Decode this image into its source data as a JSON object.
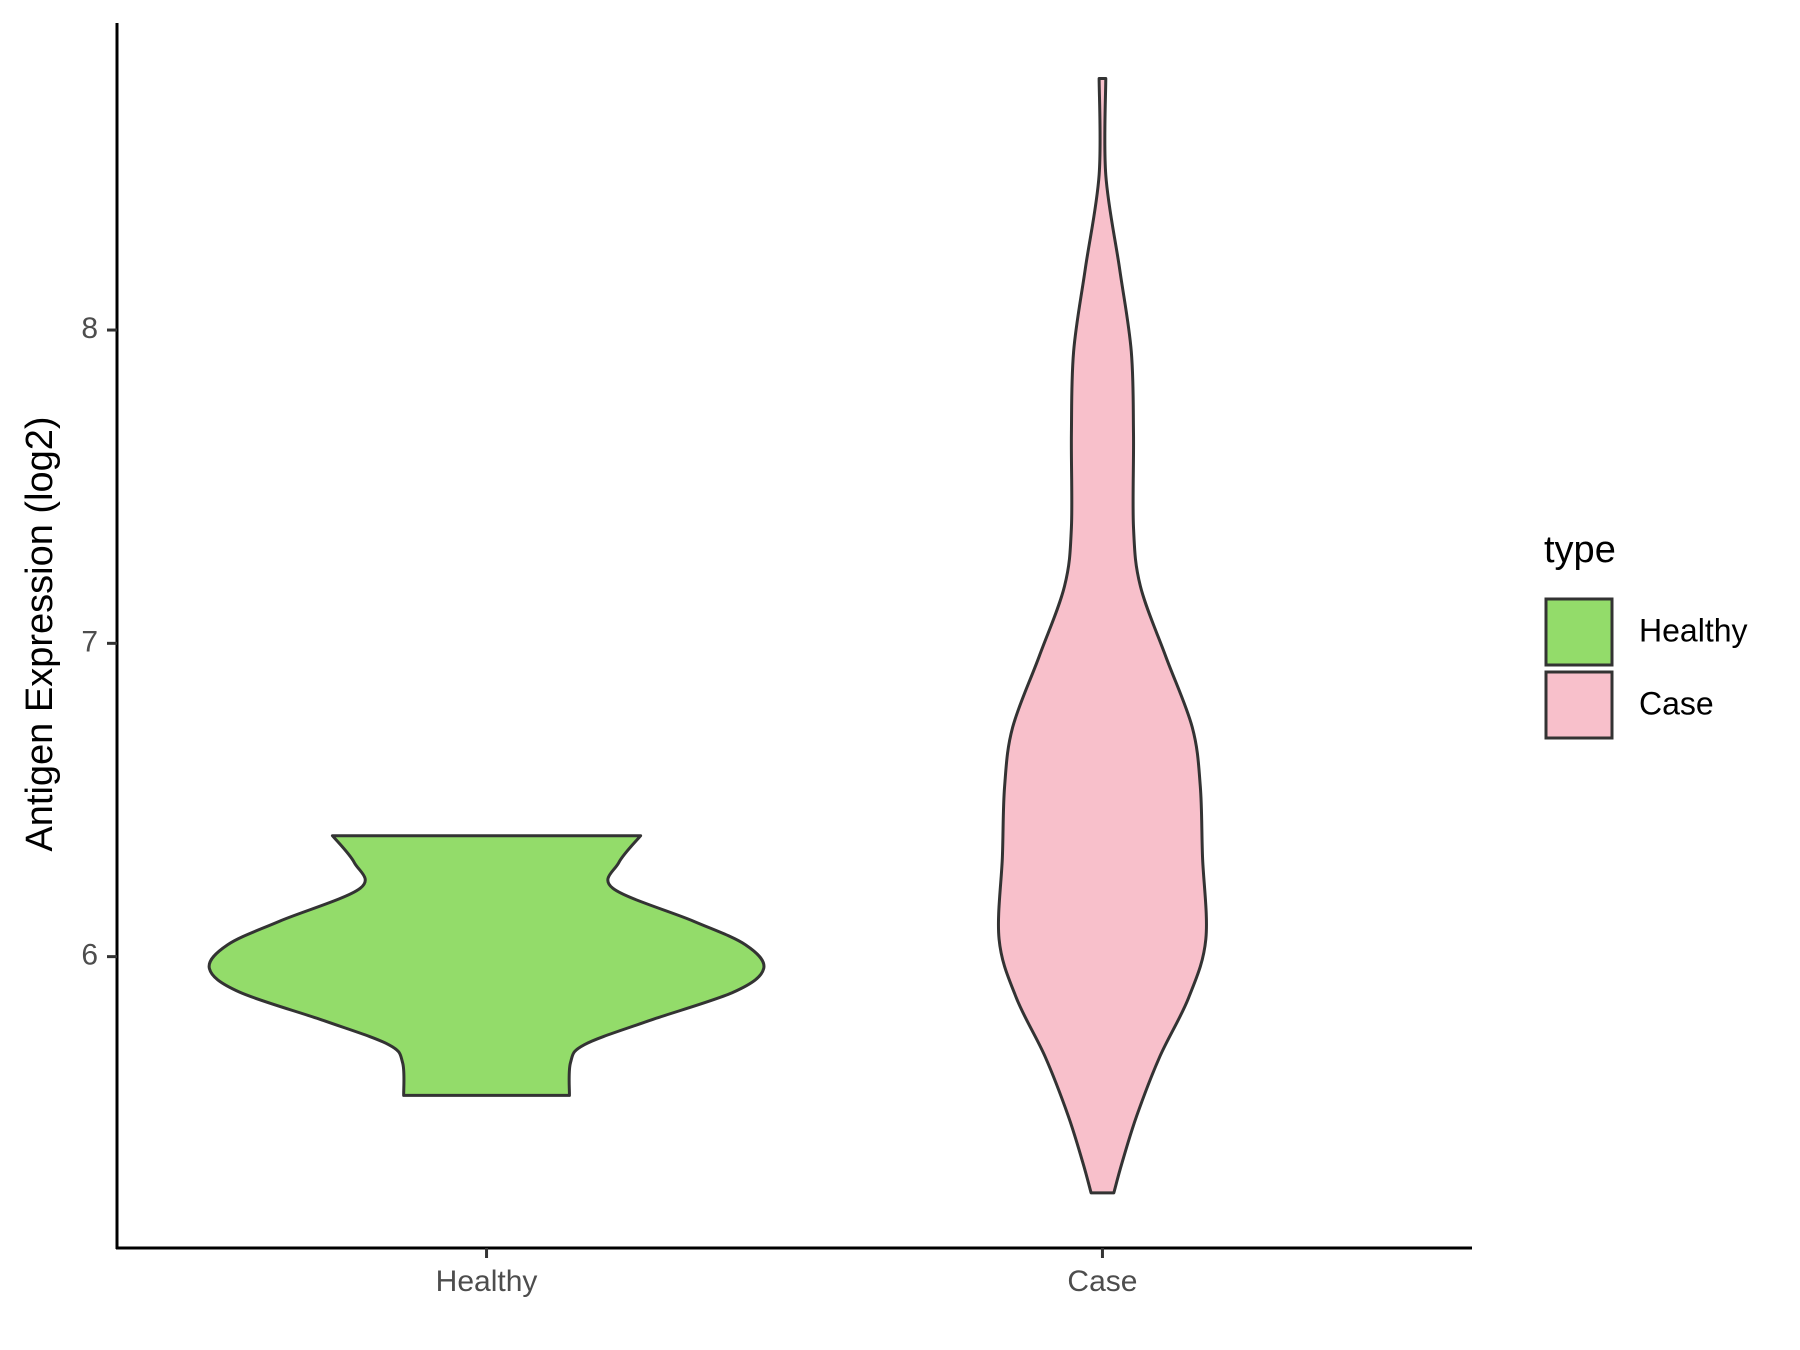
{
  "chart_data": {
    "type": "violin",
    "y_label": "Antigen Expression (log2)",
    "categories": [
      "Healthy",
      "Case"
    ],
    "series": [
      {
        "name": "Healthy",
        "color": "#93dc6a",
        "y": [
          6.386,
          6.3,
          6.218,
          6.113,
          6.038,
          5.962,
          5.887,
          5.794,
          5.719,
          5.662,
          5.557
        ],
        "density": [
          0.556,
          0.477,
          0.456,
          0.747,
          0.934,
          1.0,
          0.892,
          0.581,
          0.353,
          0.303,
          0.299
        ]
      },
      {
        "name": "Case",
        "color": "#f8c0cb",
        "y": [
          8.803,
          8.495,
          8.195,
          7.932,
          7.67,
          7.37,
          7.182,
          6.959,
          6.732,
          6.544,
          6.319,
          6.056,
          5.869,
          5.681,
          5.493,
          5.343,
          5.246
        ],
        "density": [
          0.012,
          0.012,
          0.062,
          0.104,
          0.112,
          0.112,
          0.137,
          0.228,
          0.324,
          0.353,
          0.361,
          0.373,
          0.311,
          0.207,
          0.124,
          0.071,
          0.041
        ]
      }
    ],
    "ylim": [
      5.07,
      8.98
    ],
    "yticks": [
      6,
      7,
      8
    ],
    "legend_title": "type",
    "legend": "right"
  }
}
